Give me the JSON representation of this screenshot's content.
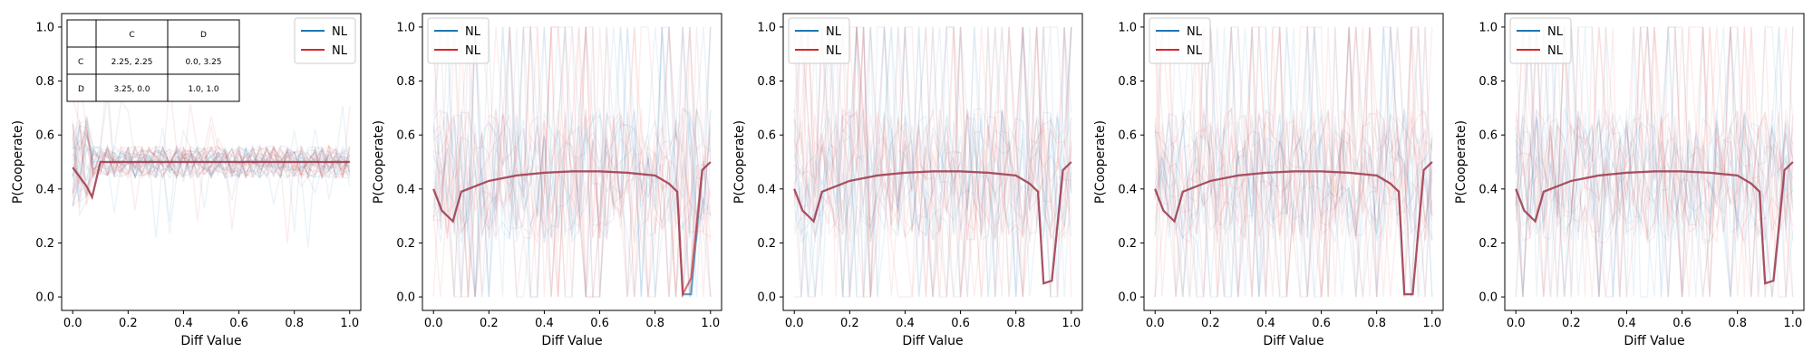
{
  "chart_data": [
    {
      "type": "line",
      "xlabel": "Diff Value",
      "ylabel": "P(Cooperate)",
      "xlim": [
        -0.04,
        1.04
      ],
      "ylim": [
        -0.05,
        1.05
      ],
      "x_ticks": [
        "0.0",
        "0.2",
        "0.4",
        "0.6",
        "0.8",
        "1.0"
      ],
      "y_ticks": [
        "0.0",
        "0.2",
        "0.4",
        "0.6",
        "0.8",
        "1.0"
      ],
      "grid": false,
      "legend": {
        "position": "top-right",
        "entries": [
          {
            "label": "NL",
            "color": "#1f77b4"
          },
          {
            "label": "NL",
            "color": "#d62728"
          }
        ]
      },
      "payoff_table": {
        "header": [
          "",
          "C",
          "D"
        ],
        "rows": [
          [
            "C",
            "2.25, 2.25",
            "0.0, 3.25"
          ],
          [
            "D",
            "3.25, 0.0",
            "1.0, 1.0"
          ]
        ]
      },
      "x": [
        0.0,
        0.05,
        0.07,
        0.1,
        0.2,
        0.3,
        0.4,
        0.5,
        0.6,
        0.7,
        0.8,
        0.9,
        1.0
      ],
      "series": [
        {
          "color": "#1f77b4",
          "values": [
            0.48,
            0.41,
            0.37,
            0.5,
            0.5,
            0.5,
            0.5,
            0.5,
            0.5,
            0.5,
            0.5,
            0.5,
            0.5
          ]
        },
        {
          "color": "#d62728",
          "values": [
            0.48,
            0.41,
            0.37,
            0.5,
            0.5,
            0.5,
            0.5,
            0.5,
            0.5,
            0.5,
            0.5,
            0.5,
            0.5
          ]
        }
      ]
    },
    {
      "type": "line",
      "xlabel": "Diff Value",
      "ylabel": "P(Cooperate)",
      "xlim": [
        -0.04,
        1.04
      ],
      "ylim": [
        -0.05,
        1.05
      ],
      "x_ticks": [
        "0.0",
        "0.2",
        "0.4",
        "0.6",
        "0.8",
        "1.0"
      ],
      "y_ticks": [
        "0.0",
        "0.2",
        "0.4",
        "0.6",
        "0.8",
        "1.0"
      ],
      "grid": false,
      "legend": {
        "position": "top-left",
        "entries": [
          {
            "label": "NL",
            "color": "#1f77b4"
          },
          {
            "label": "NL",
            "color": "#d62728"
          }
        ]
      },
      "x": [
        0.0,
        0.03,
        0.07,
        0.1,
        0.2,
        0.3,
        0.4,
        0.5,
        0.6,
        0.7,
        0.8,
        0.85,
        0.88,
        0.9,
        0.93,
        0.97,
        1.0
      ],
      "series": [
        {
          "color": "#1f77b4",
          "values": [
            0.4,
            0.32,
            0.28,
            0.39,
            0.43,
            0.45,
            0.46,
            0.465,
            0.465,
            0.46,
            0.45,
            0.42,
            0.39,
            0.01,
            0.01,
            0.47,
            0.5
          ]
        },
        {
          "color": "#d62728",
          "values": [
            0.4,
            0.32,
            0.28,
            0.39,
            0.43,
            0.45,
            0.46,
            0.465,
            0.465,
            0.46,
            0.45,
            0.42,
            0.39,
            0.01,
            0.07,
            0.47,
            0.5
          ]
        }
      ]
    },
    {
      "type": "line",
      "xlabel": "Diff Value",
      "ylabel": "P(Cooperate)",
      "xlim": [
        -0.04,
        1.04
      ],
      "ylim": [
        -0.05,
        1.05
      ],
      "x_ticks": [
        "0.0",
        "0.2",
        "0.4",
        "0.6",
        "0.8",
        "1.0"
      ],
      "y_ticks": [
        "0.0",
        "0.2",
        "0.4",
        "0.6",
        "0.8",
        "1.0"
      ],
      "grid": false,
      "legend": {
        "position": "top-left",
        "entries": [
          {
            "label": "NL",
            "color": "#1f77b4"
          },
          {
            "label": "NL",
            "color": "#d62728"
          }
        ]
      },
      "x": [
        0.0,
        0.03,
        0.07,
        0.1,
        0.2,
        0.3,
        0.4,
        0.5,
        0.6,
        0.7,
        0.8,
        0.85,
        0.88,
        0.9,
        0.93,
        0.97,
        1.0
      ],
      "series": [
        {
          "color": "#1f77b4",
          "values": [
            0.4,
            0.32,
            0.28,
            0.39,
            0.43,
            0.45,
            0.46,
            0.465,
            0.465,
            0.46,
            0.45,
            0.42,
            0.39,
            0.05,
            0.06,
            0.47,
            0.5
          ]
        },
        {
          "color": "#d62728",
          "values": [
            0.4,
            0.32,
            0.28,
            0.39,
            0.43,
            0.45,
            0.46,
            0.465,
            0.465,
            0.46,
            0.45,
            0.42,
            0.39,
            0.05,
            0.06,
            0.47,
            0.5
          ]
        }
      ]
    },
    {
      "type": "line",
      "xlabel": "Diff Value",
      "ylabel": "P(Cooperate)",
      "xlim": [
        -0.04,
        1.04
      ],
      "ylim": [
        -0.05,
        1.05
      ],
      "x_ticks": [
        "0.0",
        "0.2",
        "0.4",
        "0.6",
        "0.8",
        "1.0"
      ],
      "y_ticks": [
        "0.0",
        "0.2",
        "0.4",
        "0.6",
        "0.8",
        "1.0"
      ],
      "grid": false,
      "legend": {
        "position": "top-left",
        "entries": [
          {
            "label": "NL",
            "color": "#1f77b4"
          },
          {
            "label": "NL",
            "color": "#d62728"
          }
        ]
      },
      "x": [
        0.0,
        0.03,
        0.07,
        0.1,
        0.2,
        0.3,
        0.4,
        0.5,
        0.6,
        0.7,
        0.8,
        0.85,
        0.88,
        0.9,
        0.93,
        0.97,
        1.0
      ],
      "series": [
        {
          "color": "#1f77b4",
          "values": [
            0.4,
            0.32,
            0.28,
            0.39,
            0.43,
            0.45,
            0.46,
            0.465,
            0.465,
            0.46,
            0.45,
            0.42,
            0.39,
            0.01,
            0.01,
            0.47,
            0.5
          ]
        },
        {
          "color": "#d62728",
          "values": [
            0.4,
            0.32,
            0.28,
            0.39,
            0.43,
            0.45,
            0.46,
            0.465,
            0.465,
            0.46,
            0.45,
            0.42,
            0.39,
            0.01,
            0.01,
            0.47,
            0.5
          ]
        }
      ]
    },
    {
      "type": "line",
      "xlabel": "Diff Value",
      "ylabel": "P(Cooperate)",
      "xlim": [
        -0.04,
        1.04
      ],
      "ylim": [
        -0.05,
        1.05
      ],
      "x_ticks": [
        "0.0",
        "0.2",
        "0.4",
        "0.6",
        "0.8",
        "1.0"
      ],
      "y_ticks": [
        "0.0",
        "0.2",
        "0.4",
        "0.6",
        "0.8",
        "1.0"
      ],
      "grid": false,
      "legend": {
        "position": "top-left",
        "entries": [
          {
            "label": "NL",
            "color": "#1f77b4"
          },
          {
            "label": "NL",
            "color": "#d62728"
          }
        ]
      },
      "x": [
        0.0,
        0.03,
        0.07,
        0.1,
        0.2,
        0.3,
        0.4,
        0.5,
        0.6,
        0.7,
        0.8,
        0.85,
        0.88,
        0.9,
        0.93,
        0.97,
        1.0
      ],
      "series": [
        {
          "color": "#1f77b4",
          "values": [
            0.4,
            0.32,
            0.28,
            0.39,
            0.43,
            0.45,
            0.46,
            0.465,
            0.465,
            0.46,
            0.45,
            0.42,
            0.39,
            0.05,
            0.06,
            0.47,
            0.5
          ]
        },
        {
          "color": "#d62728",
          "values": [
            0.4,
            0.32,
            0.28,
            0.39,
            0.43,
            0.45,
            0.46,
            0.465,
            0.465,
            0.46,
            0.45,
            0.42,
            0.39,
            0.05,
            0.06,
            0.47,
            0.5
          ]
        }
      ]
    }
  ]
}
